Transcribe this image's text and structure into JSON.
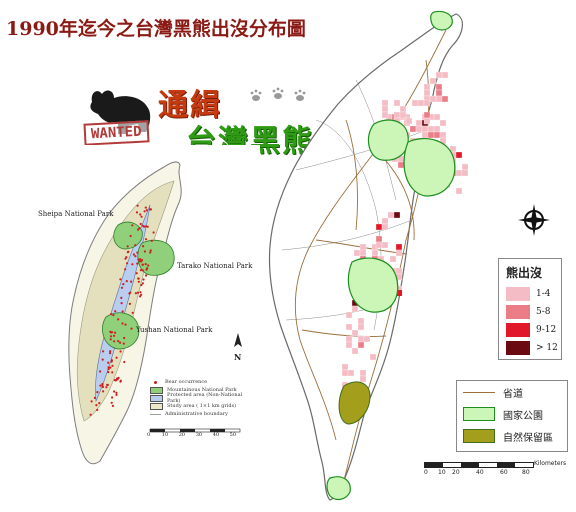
{
  "title": "1990年迄今之台灣黑熊出沒分布圖",
  "wanted": {
    "stamp": "WANTED",
    "line1": "通緝",
    "line2": "台灣黑熊"
  },
  "inset": {
    "parks": [
      "Sheipa National Park",
      "Tarako National Park",
      "Yushan National Park"
    ],
    "north_label": "N",
    "legend": [
      {
        "label": "Bear occurrence",
        "color": "#cc1f1f"
      },
      {
        "label": "Mountainous National Park",
        "color": "#90d07a"
      },
      {
        "label": "Protected area (Non-National Park)",
        "color": "#b9cdef"
      },
      {
        "label": "Study area ( 1×1 km grids)",
        "color": "#ece8c8"
      },
      {
        "label": "Administrative boundary",
        "color": "#a0a0a0"
      }
    ],
    "scale_ticks": [
      "0",
      "10",
      "20",
      "30",
      "40",
      "50"
    ]
  },
  "legend": {
    "title": "熊出沒",
    "classes": [
      {
        "label": "1-4",
        "color": "#f4bcc4"
      },
      {
        "label": "5-8",
        "color": "#ea7d86"
      },
      {
        "label": "9-12",
        "color": "#e0182a"
      },
      {
        "label": "> 12",
        "color": "#6b0a10"
      }
    ]
  },
  "legend2": [
    {
      "label": "省道",
      "type": "line",
      "color": "#9c6f3c"
    },
    {
      "label": "國家公園",
      "type": "fill",
      "color": "#ccf5b8"
    },
    {
      "label": "自然保留區",
      "type": "fill",
      "color": "#a39f1c"
    }
  ],
  "scale": {
    "ticks": [
      "0",
      "10",
      "20",
      "40",
      "60",
      "80"
    ],
    "unit": "Kilometers"
  },
  "colors": {
    "title": "#8b1a14",
    "park_fill": "#ccf5b8",
    "park_edge": "#1e8f1e",
    "reserve_fill": "#a39f1c",
    "road": "#9c6f3c"
  }
}
